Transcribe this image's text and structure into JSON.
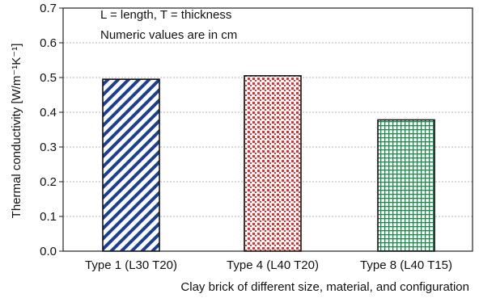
{
  "chart_data": {
    "type": "bar",
    "categories": [
      "Type 1 (L30 T20)",
      "Type 4 (L40 T20)",
      "Type 8 (L40 T15)"
    ],
    "values": [
      0.495,
      0.505,
      0.378
    ],
    "xlabel": "Clay brick of different size, material, and configuration",
    "ylabel": "Thermal conductivity [W/m⁻¹K⁻¹]",
    "ylim": [
      0,
      0.7
    ],
    "yticks": [
      "0.0",
      "0.1",
      "0.2",
      "0.3",
      "0.4",
      "0.5",
      "0.6",
      "0.7"
    ],
    "grid": true,
    "annotations": [
      "L = length, T = thickness",
      "Numeric values are in cm"
    ],
    "bar_styles": [
      {
        "pattern": "diagonal-hatch",
        "color": "#1c3f94"
      },
      {
        "pattern": "dots",
        "color": "#e03030"
      },
      {
        "pattern": "grid",
        "color": "#1a8a4a"
      }
    ]
  }
}
